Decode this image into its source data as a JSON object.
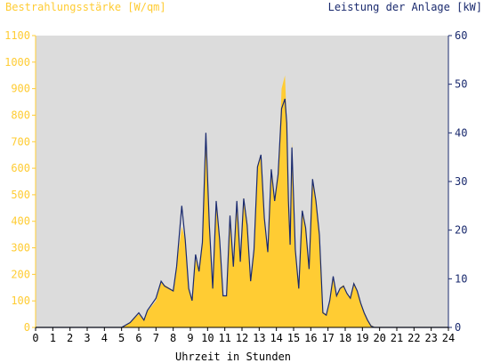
{
  "chart_data": {
    "type": "area",
    "left_axis_title": "Bestrahlungsstärke [W/qm]",
    "right_axis_title": "Leistung der Anlage [kW]",
    "xlabel": "Uhrzeit in Stunden",
    "x_ticks": [
      "0",
      "1",
      "2",
      "3",
      "4",
      "5",
      "6",
      "7",
      "8",
      "9",
      "10",
      "11",
      "12",
      "13",
      "14",
      "15",
      "16",
      "17",
      "18",
      "19",
      "20",
      "21",
      "22",
      "23",
      "24"
    ],
    "left_ticks": [
      "0",
      "100",
      "200",
      "300",
      "400",
      "500",
      "600",
      "700",
      "800",
      "900",
      "1000",
      "1100"
    ],
    "right_ticks": [
      "0",
      "10",
      "20",
      "30",
      "40",
      "50",
      "60"
    ],
    "xlim": [
      0,
      24
    ],
    "left_ylim": [
      0,
      1100
    ],
    "right_ylim": [
      0,
      60
    ],
    "grid": false,
    "colors": {
      "plot_bg": "#dcdcdc",
      "irradiance_fill": "#ffcc33",
      "power_line": "#1a2a6e",
      "left_axis_text": "#ffcc33",
      "right_axis_text": "#1a2a6e",
      "bottom_axis_text": "#000000"
    },
    "series": [
      {
        "role": "irradiance",
        "axis": "left",
        "style": "area",
        "x": [
          5.0,
          5.5,
          6.0,
          6.3,
          6.5,
          7.0,
          7.3,
          7.5,
          8.0,
          8.2,
          8.5,
          8.7,
          8.9,
          9.1,
          9.3,
          9.5,
          9.7,
          9.9,
          10.1,
          10.3,
          10.5,
          10.7,
          10.9,
          11.1,
          11.3,
          11.5,
          11.7,
          11.9,
          12.1,
          12.3,
          12.5,
          12.7,
          12.9,
          13.1,
          13.3,
          13.5,
          13.7,
          13.9,
          14.1,
          14.3,
          14.5,
          14.6,
          14.7,
          14.8,
          14.9,
          15.1,
          15.3,
          15.5,
          15.7,
          15.9,
          16.1,
          16.3,
          16.5,
          16.7,
          16.9,
          17.1,
          17.3,
          17.5,
          17.7,
          17.9,
          18.1,
          18.3,
          18.5,
          18.7,
          18.9,
          19.1,
          19.3,
          19.5,
          19.7,
          19.9,
          20.1,
          20.3,
          20.5
        ],
        "values": [
          0,
          20,
          50,
          30,
          60,
          100,
          170,
          160,
          140,
          230,
          380,
          330,
          150,
          100,
          260,
          210,
          320,
          700,
          400,
          150,
          480,
          330,
          120,
          120,
          420,
          230,
          480,
          250,
          490,
          400,
          180,
          300,
          610,
          650,
          420,
          290,
          600,
          480,
          580,
          900,
          950,
          780,
          480,
          310,
          700,
          300,
          150,
          440,
          380,
          220,
          560,
          480,
          350,
          60,
          50,
          100,
          190,
          120,
          150,
          160,
          130,
          110,
          170,
          140,
          90,
          60,
          30,
          10,
          0,
          0,
          0,
          0,
          0
        ]
      },
      {
        "role": "power",
        "axis": "right",
        "style": "line",
        "x": [
          5.0,
          5.5,
          6.0,
          6.3,
          6.5,
          7.0,
          7.3,
          7.5,
          8.0,
          8.2,
          8.5,
          8.7,
          8.9,
          9.1,
          9.3,
          9.5,
          9.7,
          9.9,
          10.1,
          10.3,
          10.5,
          10.7,
          10.9,
          11.1,
          11.3,
          11.5,
          11.7,
          11.9,
          12.1,
          12.3,
          12.5,
          12.7,
          12.9,
          13.1,
          13.3,
          13.5,
          13.7,
          13.9,
          14.1,
          14.3,
          14.5,
          14.6,
          14.7,
          14.8,
          14.9,
          15.1,
          15.3,
          15.5,
          15.7,
          15.9,
          16.1,
          16.3,
          16.5,
          16.7,
          16.9,
          17.1,
          17.3,
          17.5,
          17.7,
          17.9,
          18.1,
          18.3,
          18.5,
          18.7,
          18.9,
          19.1,
          19.3,
          19.5,
          19.7,
          19.9,
          20.1,
          20.3,
          20.5
        ],
        "values": [
          0,
          1,
          3,
          1.5,
          3.5,
          6,
          9.5,
          8.5,
          7.5,
          12.5,
          25,
          18,
          8,
          5.5,
          15,
          11.5,
          17.5,
          40,
          21,
          8,
          26,
          18,
          6.5,
          6.5,
          23,
          12.5,
          26,
          13.5,
          26.5,
          21,
          9.5,
          16,
          33,
          35.5,
          22.5,
          15.5,
          32.5,
          26,
          31.5,
          45,
          47,
          42,
          26,
          17,
          37,
          16,
          8,
          24,
          20.5,
          12,
          30.5,
          26,
          19,
          3,
          2.5,
          5.5,
          10.5,
          6.5,
          8,
          8.5,
          7,
          6,
          9,
          7.5,
          5,
          3,
          1.5,
          0.3,
          0,
          0,
          0,
          0,
          0
        ]
      }
    ]
  }
}
